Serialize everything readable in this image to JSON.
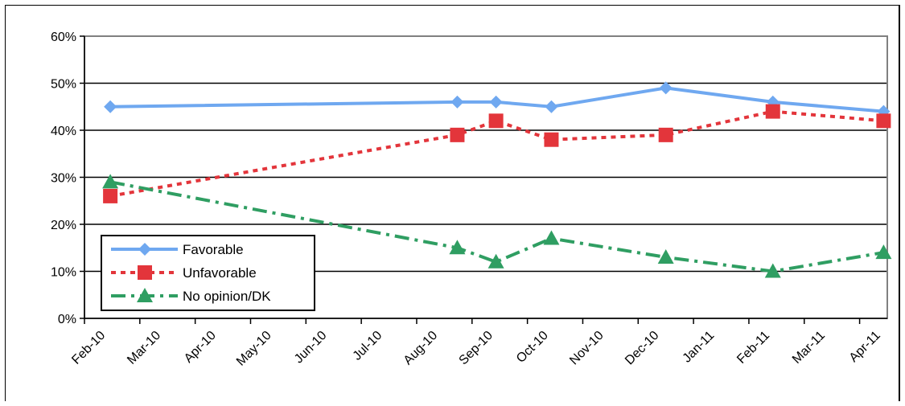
{
  "chart_data": {
    "type": "line",
    "categories": [
      "Feb-10",
      "Mar-10",
      "Apr-10",
      "May-10",
      "Jun-10",
      "Jul-10",
      "Aug-10",
      "Sep-10",
      "Oct-10",
      "Nov-10",
      "Dec-10",
      "Jan-11",
      "Feb-11",
      "Mar-11",
      "Apr-11"
    ],
    "x": [
      "2010-02-15",
      "2010-08-23",
      "2010-09-14",
      "2010-10-14",
      "2010-12-16",
      "2011-02-14",
      "2011-04-14"
    ],
    "series": [
      {
        "name": "Favorable",
        "color": "#6fa8f0",
        "marker": "diamond",
        "dash": "solid",
        "values": [
          45,
          46,
          46,
          45,
          49,
          46,
          44
        ]
      },
      {
        "name": "Unfavorable",
        "color": "#e3353b",
        "marker": "square",
        "dash": "dotted",
        "values": [
          26,
          39,
          42,
          38,
          39,
          44,
          42
        ]
      },
      {
        "name": "No opinion/DK",
        "color": "#2f9e62",
        "marker": "triangle",
        "dash": "dashdot",
        "values": [
          29,
          15,
          12,
          17,
          13,
          10,
          14
        ]
      }
    ],
    "y_ticks": [
      "0%",
      "10%",
      "20%",
      "30%",
      "40%",
      "50%",
      "60%"
    ],
    "ylim": [
      0,
      60
    ],
    "grid": true,
    "legend_position": "bottom-left",
    "title": "",
    "xlabel": "",
    "ylabel": ""
  }
}
